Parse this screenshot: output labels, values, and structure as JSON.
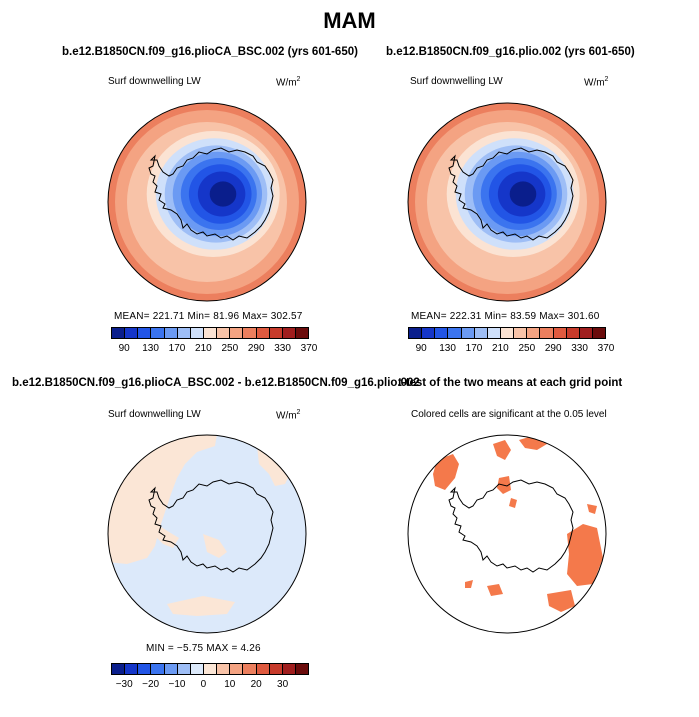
{
  "page_title": "MAM",
  "chart_data": [
    {
      "type": "heatmap",
      "panel": "top-left",
      "title": "b.e12.B1850CN.f09_g16.plioCA_BSC.002 (yrs 601-650)",
      "variable": "Surf downwelling LW",
      "units": "W/m",
      "units_sup": "2",
      "stats": {
        "mean": "221.71",
        "min": "81.96",
        "max": "302.57"
      },
      "stats_text": "MEAN=  221.71    Min=   81.96    Max=  302.57",
      "colorbar": {
        "colors": [
          "#0a1e8c",
          "#1536c9",
          "#2255e6",
          "#3b74ef",
          "#6b9af3",
          "#9ebef6",
          "#cfe0fa",
          "#fbe3d3",
          "#f8c3a8",
          "#f4a382",
          "#ec7f5e",
          "#df5a3f",
          "#c73b2b",
          "#a01e1e",
          "#6b0c0c"
        ],
        "tick_labels": [
          "90",
          "130",
          "170",
          "210",
          "250",
          "290",
          "330",
          "370"
        ]
      },
      "range": [
        81.96,
        302.57
      ]
    },
    {
      "type": "heatmap",
      "panel": "top-right",
      "title": "b.e12.B1850CN.f09_g16.plio.002 (yrs 601-650)",
      "variable": "Surf downwelling LW",
      "units": "W/m",
      "units_sup": "2",
      "stats": {
        "mean": "222.31",
        "min": "83.59",
        "max": "301.60"
      },
      "stats_text": "MEAN=  222.31    Min=   83.59    Max=  301.60",
      "colorbar": {
        "colors": [
          "#0a1e8c",
          "#1536c9",
          "#2255e6",
          "#3b74ef",
          "#6b9af3",
          "#9ebef6",
          "#cfe0fa",
          "#fbe3d3",
          "#f8c3a8",
          "#f4a382",
          "#ec7f5e",
          "#df5a3f",
          "#c73b2b",
          "#a01e1e",
          "#6b0c0c"
        ],
        "tick_labels": [
          "90",
          "130",
          "170",
          "210",
          "250",
          "290",
          "330",
          "370"
        ]
      },
      "range": [
        83.59,
        301.6
      ]
    },
    {
      "type": "heatmap",
      "panel": "bottom-left",
      "title": "b.e12.B1850CN.f09_g16.plioCA_BSC.002 - b.e12.B1850CN.f09_g16.plio.002",
      "variable": "Surf downwelling LW",
      "units": "W/m",
      "units_sup": "2",
      "stats": {
        "min": "-5.75",
        "max": "4.26"
      },
      "stats_text": "MIN =   −5.75  MAX =    4.26",
      "colorbar": {
        "colors": [
          "#0a1e8c",
          "#1536c9",
          "#2255e6",
          "#3b74ef",
          "#6b9af3",
          "#9ebef6",
          "#dce9fa",
          "#fbe6d6",
          "#f8c3a8",
          "#f4a382",
          "#ec7f5e",
          "#df5a3f",
          "#c73b2b",
          "#a01e1e",
          "#6b0c0c"
        ],
        "tick_labels": [
          "−30",
          "−20",
          "−10",
          "0",
          "10",
          "20",
          "30"
        ]
      },
      "range": [
        -5.75,
        4.26
      ]
    },
    {
      "type": "heatmap",
      "panel": "bottom-right",
      "title": "t-test of the two means at each grid point",
      "subtitle": "Colored cells are significant at the 0.05 level",
      "significance_level": 0.05
    }
  ],
  "colors": {
    "sig_fill": "#f4794b",
    "pos_diff": "#fbe6d6",
    "neg_diff": "#dce9fa"
  }
}
